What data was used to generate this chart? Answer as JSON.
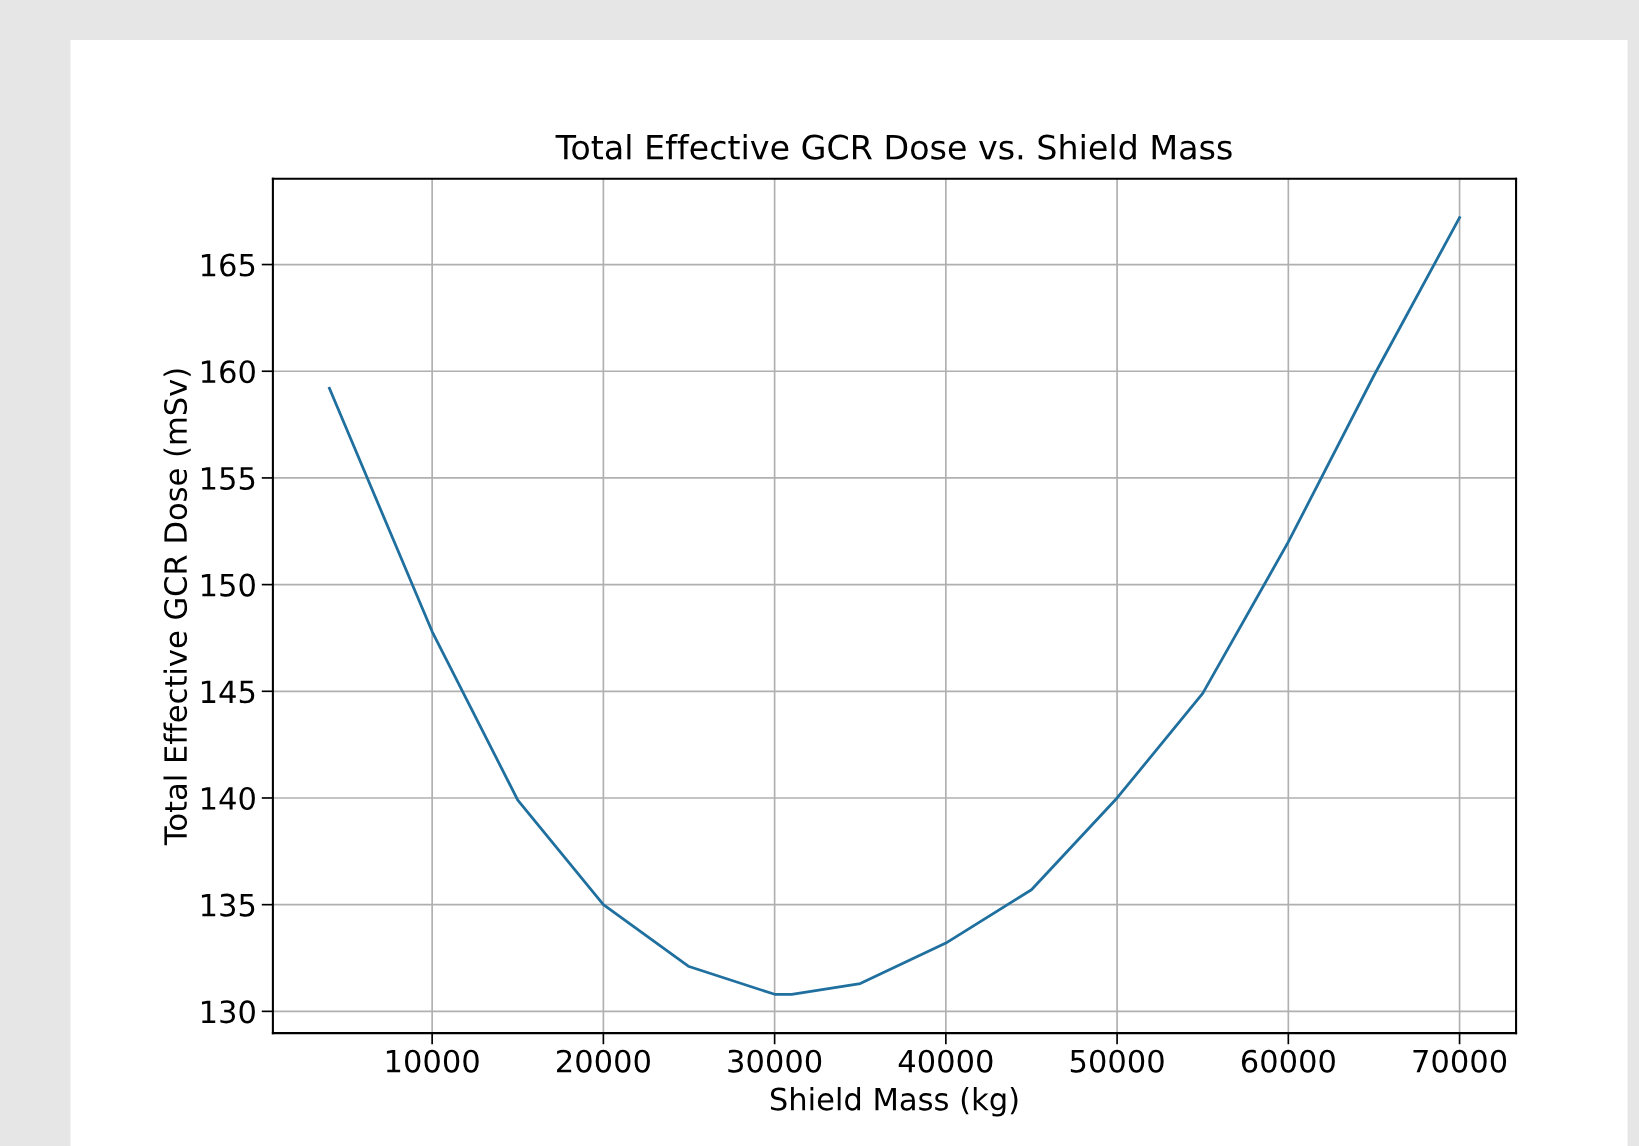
{
  "chart_data": {
    "type": "line",
    "title": "Total Effective GCR Dose vs. Shield Mass",
    "xlabel": "Shield Mass (kg)",
    "ylabel": "Total Effective GCR Dose (mSv)",
    "x": [
      4000,
      10000,
      15000,
      20000,
      25000,
      30000,
      31000,
      35000,
      40000,
      45000,
      50000,
      55000,
      60000,
      65000,
      70000
    ],
    "series": [
      {
        "color": "#1f6f9f",
        "values": [
          159.2,
          147.8,
          139.9,
          135.0,
          132.1,
          130.8,
          130.8,
          131.3,
          133.2,
          135.7,
          140.0,
          144.9,
          152.0,
          159.8,
          167.2
        ]
      }
    ],
    "xlim": [
      700,
      73300
    ],
    "ylim": [
      128.98,
      169.02
    ],
    "xticks": [
      10000,
      20000,
      30000,
      40000,
      50000,
      60000,
      70000
    ],
    "yticks": [
      130,
      135,
      140,
      145,
      150,
      155,
      160,
      165
    ],
    "grid": true,
    "legend": false,
    "marker": "none",
    "line_style": "solid"
  }
}
